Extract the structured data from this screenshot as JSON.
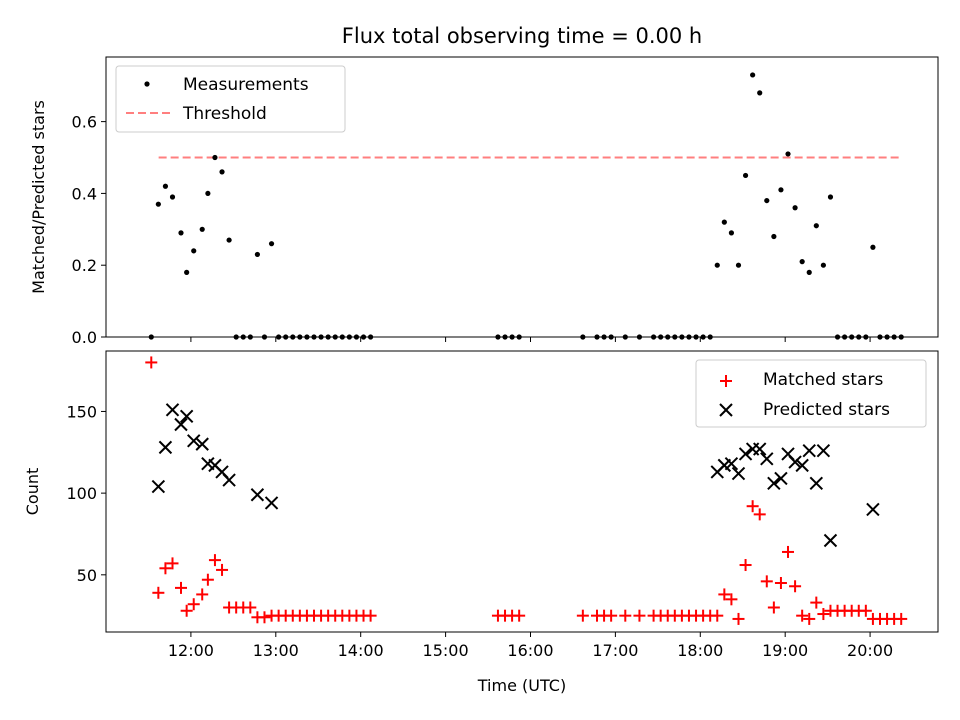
{
  "figure": {
    "title": "Flux total observing time = 0.00 h"
  },
  "chart_data": [
    {
      "type": "scatter",
      "panel": "top",
      "xlabel": "",
      "ylabel": "Matched/Predicted stars",
      "x_range_hours": [
        11.0,
        20.8
      ],
      "ylim": [
        0,
        0.78
      ],
      "yticks": [
        0.0,
        0.2,
        0.4,
        0.6
      ],
      "ytick_labels": [
        "0.0",
        "0.2",
        "0.4",
        "0.6"
      ],
      "legend_position": "top-left",
      "threshold": {
        "name": "Threshold",
        "value": 0.5,
        "x_range_hours": [
          11.62,
          20.38
        ],
        "color": "#ff7f7f",
        "style": "dashed"
      },
      "series": [
        {
          "name": "Measurements",
          "color": "#000000",
          "marker": "dot",
          "points": [
            [
              "11:37",
              0.37
            ],
            [
              "11:42",
              0.42
            ],
            [
              "11:47",
              0.39
            ],
            [
              "11:53",
              0.29
            ],
            [
              "11:57",
              0.18
            ],
            [
              "12:02",
              0.24
            ],
            [
              "12:08",
              0.3
            ],
            [
              "12:12",
              0.4
            ],
            [
              "12:17",
              0.5
            ],
            [
              "12:22",
              0.46
            ],
            [
              "12:27",
              0.27
            ],
            [
              "12:47",
              0.23
            ],
            [
              "12:57",
              0.26
            ],
            [
              "11:32",
              0.0
            ],
            [
              "12:32",
              0.0
            ],
            [
              "12:37",
              0.0
            ],
            [
              "12:42",
              0.0
            ],
            [
              "12:52",
              0.0
            ],
            [
              "13:02",
              0.0
            ],
            [
              "13:07",
              0.0
            ],
            [
              "13:12",
              0.0
            ],
            [
              "13:17",
              0.0
            ],
            [
              "13:22",
              0.0
            ],
            [
              "13:27",
              0.0
            ],
            [
              "13:32",
              0.0
            ],
            [
              "13:37",
              0.0
            ],
            [
              "13:42",
              0.0
            ],
            [
              "13:47",
              0.0
            ],
            [
              "13:52",
              0.0
            ],
            [
              "13:57",
              0.0
            ],
            [
              "14:02",
              0.0
            ],
            [
              "14:07",
              0.0
            ],
            [
              "15:37",
              0.0
            ],
            [
              "15:42",
              0.0
            ],
            [
              "15:47",
              0.0
            ],
            [
              "15:52",
              0.0
            ],
            [
              "16:37",
              0.0
            ],
            [
              "16:47",
              0.0
            ],
            [
              "16:52",
              0.0
            ],
            [
              "16:57",
              0.0
            ],
            [
              "17:07",
              0.0
            ],
            [
              "17:17",
              0.0
            ],
            [
              "17:27",
              0.0
            ],
            [
              "17:32",
              0.0
            ],
            [
              "17:37",
              0.0
            ],
            [
              "17:42",
              0.0
            ],
            [
              "17:47",
              0.0
            ],
            [
              "17:52",
              0.0
            ],
            [
              "17:57",
              0.0
            ],
            [
              "18:02",
              0.0
            ],
            [
              "18:07",
              0.0
            ],
            [
              "18:12",
              0.2
            ],
            [
              "18:17",
              0.32
            ],
            [
              "18:22",
              0.29
            ],
            [
              "18:27",
              0.2
            ],
            [
              "18:32",
              0.45
            ],
            [
              "18:37",
              0.73
            ],
            [
              "18:42",
              0.68
            ],
            [
              "18:47",
              0.38
            ],
            [
              "18:52",
              0.28
            ],
            [
              "18:57",
              0.41
            ],
            [
              "19:02",
              0.51
            ],
            [
              "19:07",
              0.36
            ],
            [
              "19:12",
              0.21
            ],
            [
              "19:17",
              0.18
            ],
            [
              "19:22",
              0.31
            ],
            [
              "19:27",
              0.2
            ],
            [
              "19:32",
              0.39
            ],
            [
              "19:37",
              0.0
            ],
            [
              "19:42",
              0.0
            ],
            [
              "19:47",
              0.0
            ],
            [
              "19:52",
              0.0
            ],
            [
              "19:57",
              0.0
            ],
            [
              "20:02",
              0.25
            ],
            [
              "20:07",
              0.0
            ],
            [
              "20:12",
              0.0
            ],
            [
              "20:17",
              0.0
            ],
            [
              "20:22",
              0.0
            ]
          ]
        }
      ]
    },
    {
      "type": "scatter",
      "panel": "bottom",
      "xlabel": "Time (UTC)",
      "ylabel": "Count",
      "x_range_hours": [
        11.0,
        20.8
      ],
      "ylim": [
        15,
        187
      ],
      "yticks": [
        50,
        100,
        150
      ],
      "ytick_labels": [
        "50",
        "100",
        "150"
      ],
      "xticks_hours": [
        12,
        13,
        14,
        15,
        16,
        17,
        18,
        19,
        20
      ],
      "xtick_labels": [
        "12:00",
        "13:00",
        "14:00",
        "15:00",
        "16:00",
        "17:00",
        "18:00",
        "19:00",
        "20:00"
      ],
      "legend_position": "top-right",
      "series": [
        {
          "name": "Matched stars",
          "color": "#ff0000",
          "marker": "plus",
          "points": [
            [
              "11:32",
              180
            ],
            [
              "11:37",
              39
            ],
            [
              "11:42",
              54
            ],
            [
              "11:47",
              57
            ],
            [
              "11:53",
              42
            ],
            [
              "11:57",
              28
            ],
            [
              "12:02",
              32
            ],
            [
              "12:08",
              38
            ],
            [
              "12:12",
              47
            ],
            [
              "12:17",
              59
            ],
            [
              "12:22",
              53
            ],
            [
              "12:27",
              30
            ],
            [
              "12:32",
              30
            ],
            [
              "12:37",
              30
            ],
            [
              "12:42",
              30
            ],
            [
              "12:47",
              24
            ],
            [
              "12:52",
              24
            ],
            [
              "12:57",
              25
            ],
            [
              "13:02",
              25
            ],
            [
              "13:07",
              25
            ],
            [
              "13:12",
              25
            ],
            [
              "13:17",
              25
            ],
            [
              "13:22",
              25
            ],
            [
              "13:27",
              25
            ],
            [
              "13:32",
              25
            ],
            [
              "13:37",
              25
            ],
            [
              "13:42",
              25
            ],
            [
              "13:47",
              25
            ],
            [
              "13:52",
              25
            ],
            [
              "13:57",
              25
            ],
            [
              "14:02",
              25
            ],
            [
              "14:07",
              25
            ],
            [
              "15:37",
              25
            ],
            [
              "15:42",
              25
            ],
            [
              "15:47",
              25
            ],
            [
              "15:52",
              25
            ],
            [
              "16:37",
              25
            ],
            [
              "16:47",
              25
            ],
            [
              "16:52",
              25
            ],
            [
              "16:57",
              25
            ],
            [
              "17:07",
              25
            ],
            [
              "17:17",
              25
            ],
            [
              "17:27",
              25
            ],
            [
              "17:32",
              25
            ],
            [
              "17:37",
              25
            ],
            [
              "17:42",
              25
            ],
            [
              "17:47",
              25
            ],
            [
              "17:52",
              25
            ],
            [
              "17:57",
              25
            ],
            [
              "18:02",
              25
            ],
            [
              "18:07",
              25
            ],
            [
              "18:12",
              25
            ],
            [
              "18:17",
              38
            ],
            [
              "18:22",
              35
            ],
            [
              "18:27",
              23
            ],
            [
              "18:32",
              56
            ],
            [
              "18:37",
              92
            ],
            [
              "18:42",
              87
            ],
            [
              "18:47",
              46
            ],
            [
              "18:52",
              30
            ],
            [
              "18:57",
              45
            ],
            [
              "19:02",
              64
            ],
            [
              "19:07",
              43
            ],
            [
              "19:12",
              25
            ],
            [
              "19:17",
              23
            ],
            [
              "19:22",
              33
            ],
            [
              "19:27",
              26
            ],
            [
              "19:32",
              28
            ],
            [
              "19:37",
              28
            ],
            [
              "19:42",
              28
            ],
            [
              "19:47",
              28
            ],
            [
              "19:52",
              28
            ],
            [
              "19:57",
              28
            ],
            [
              "20:02",
              23
            ],
            [
              "20:07",
              23
            ],
            [
              "20:12",
              23
            ],
            [
              "20:17",
              23
            ],
            [
              "20:22",
              23
            ]
          ]
        },
        {
          "name": "Predicted stars",
          "color": "#000000",
          "marker": "cross",
          "points": [
            [
              "11:37",
              104
            ],
            [
              "11:42",
              128
            ],
            [
              "11:47",
              151
            ],
            [
              "11:53",
              142
            ],
            [
              "11:57",
              147
            ],
            [
              "12:02",
              132
            ],
            [
              "12:08",
              130
            ],
            [
              "12:12",
              118
            ],
            [
              "12:17",
              117
            ],
            [
              "12:22",
              113
            ],
            [
              "12:27",
              108
            ],
            [
              "12:47",
              99
            ],
            [
              "12:57",
              94
            ],
            [
              "18:12",
              113
            ],
            [
              "18:17",
              117
            ],
            [
              "18:22",
              118
            ],
            [
              "18:27",
              112
            ],
            [
              "18:32",
              124
            ],
            [
              "18:37",
              127
            ],
            [
              "18:42",
              127
            ],
            [
              "18:47",
              121
            ],
            [
              "18:52",
              106
            ],
            [
              "18:57",
              109
            ],
            [
              "19:02",
              124
            ],
            [
              "19:07",
              119
            ],
            [
              "19:12",
              117
            ],
            [
              "19:17",
              126
            ],
            [
              "19:22",
              106
            ],
            [
              "19:27",
              126
            ],
            [
              "19:32",
              71
            ],
            [
              "20:02",
              90
            ]
          ]
        }
      ]
    }
  ]
}
